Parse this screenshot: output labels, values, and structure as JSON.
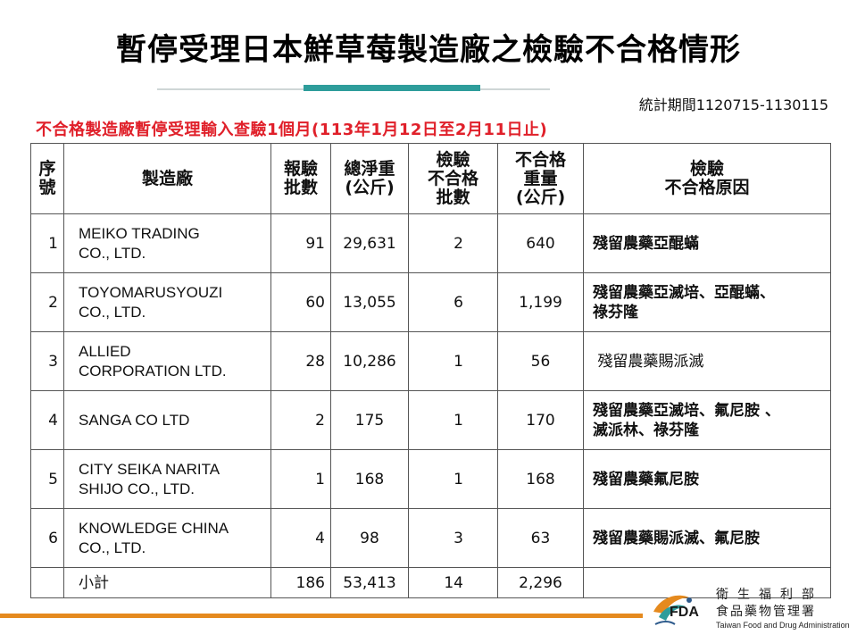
{
  "title": "暫停受理日本鮮草莓製造廠之檢驗不合格情形",
  "period": "統計期間1120715-1130115",
  "subtitle": "不合格製造廠暫停受理輸入查驗1個月(113年1月12日至2月11日止)",
  "headers": {
    "seq": "序\n號",
    "manufacturer": "製造廠",
    "batches": "報驗\n批數",
    "net_weight": "總淨重\n(公斤)",
    "failed_batches": "檢驗\n不合格\n批數",
    "failed_weight": "不合格\n重量\n(公斤)",
    "reason": "檢驗\n不合格原因"
  },
  "rows": [
    {
      "seq": "1",
      "manufacturer": "MEIKO TRADING\nCO., LTD.",
      "batches": "91",
      "net_weight": "29,631",
      "failed_batches": "2",
      "failed_weight": "640",
      "reason": "殘留農藥亞醌蟎"
    },
    {
      "seq": "2",
      "manufacturer": "TOYOMARUSYOUZI\nCO., LTD.",
      "batches": "60",
      "net_weight": "13,055",
      "failed_batches": "6",
      "failed_weight": "1,199",
      "reason": "殘留農藥亞滅培、亞醌蟎、\n祿芬隆"
    },
    {
      "seq": "3",
      "manufacturer": "ALLIED\nCORPORATION LTD.",
      "batches": "28",
      "net_weight": "10,286",
      "failed_batches": "1",
      "failed_weight": "56",
      "reason": " 殘留農藥賜派滅"
    },
    {
      "seq": "4",
      "manufacturer": "SANGA CO LTD",
      "batches": "2",
      "net_weight": "175",
      "failed_batches": "1",
      "failed_weight": "170",
      "reason": "殘留農藥亞滅培、氟尼胺 、\n滅派林、祿芬隆"
    },
    {
      "seq": "5",
      "manufacturer": "CITY SEIKA NARITA\nSHIJO CO., LTD.",
      "batches": "1",
      "net_weight": "168",
      "failed_batches": "1",
      "failed_weight": "168",
      "reason": "殘留農藥氟尼胺"
    },
    {
      "seq": "6",
      "manufacturer": "KNOWLEDGE CHINA\nCO., LTD.",
      "batches": "4",
      "net_weight": "98",
      "failed_batches": "3",
      "failed_weight": "63",
      "reason": "殘留農藥賜派滅、氟尼胺"
    }
  ],
  "subtotal": {
    "label": "小計",
    "batches": "186",
    "net_weight": "53,413",
    "failed_batches": "14",
    "failed_weight": "2,296"
  },
  "logo": {
    "icon": "fda-bird-logo",
    "abbr": "FDA",
    "ministry": "衛生福利部",
    "agency": "食品藥物管理署",
    "english": "Taiwan Food and Drug Administration",
    "colors": {
      "orange": "#e58a1e",
      "teal": "#2e9d9b",
      "blue": "#2d5a8c"
    }
  }
}
